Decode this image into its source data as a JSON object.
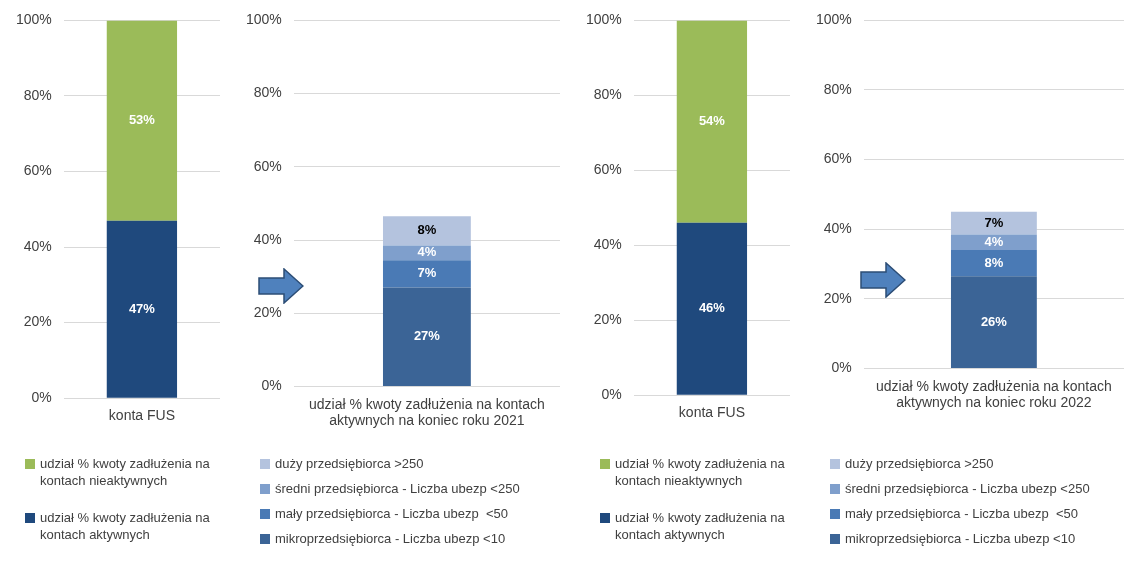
{
  "chart_data": [
    {
      "type": "bar",
      "stacked": true,
      "categories": [
        "konta FUS"
      ],
      "ylim": [
        0,
        100
      ],
      "yticks": [
        {
          "value": 0,
          "label": "0%"
        },
        {
          "value": 20,
          "label": "20%"
        },
        {
          "value": 40,
          "label": "40%"
        },
        {
          "value": 60,
          "label": "60%"
        },
        {
          "value": 80,
          "label": "80%"
        },
        {
          "value": 100,
          "label": "100%"
        }
      ],
      "grid": "y",
      "legend": "bottom",
      "series": [
        {
          "name": "udział % kwoty zadłużenia na kontach aktywnych",
          "color": "#1f497d",
          "values": [
            47
          ],
          "value_labels": [
            "47%"
          ]
        },
        {
          "name": "udział % kwoty zadłużenia na kontach nieaktywnych",
          "color": "#9bbb59",
          "values": [
            53
          ],
          "value_labels": [
            "53%"
          ]
        }
      ]
    },
    {
      "type": "bar",
      "stacked": true,
      "categories": [
        "udział % kwoty zadłużenia na kontach aktywnych na koniec roku 2021"
      ],
      "ylim": [
        0,
        100
      ],
      "yticks": [
        {
          "value": 0,
          "label": "0%"
        },
        {
          "value": 20,
          "label": "20%"
        },
        {
          "value": 40,
          "label": "40%"
        },
        {
          "value": 60,
          "label": "60%"
        },
        {
          "value": 80,
          "label": "80%"
        },
        {
          "value": 100,
          "label": "100%"
        }
      ],
      "grid": "y",
      "legend": "bottom",
      "series": [
        {
          "name": "mikroprzedsiębiorca - Liczba ubezp <10",
          "color": "#3b6496",
          "values": [
            27
          ],
          "value_labels": [
            "27%"
          ]
        },
        {
          "name": "mały przedsiębiorca - Liczba ubezp  <50",
          "color": "#4a7ab5",
          "values": [
            7.5
          ],
          "value_labels": [
            "7%"
          ]
        },
        {
          "name": "średni przedsiębiorca - Liczba ubezp <250",
          "color": "#7f9fcc",
          "values": [
            4
          ],
          "value_labels": [
            "4%"
          ]
        },
        {
          "name": "duży przedsiębiorca >250",
          "color": "#b4c3de",
          "values": [
            8
          ],
          "value_labels": [
            "8%"
          ]
        }
      ]
    },
    {
      "type": "bar",
      "stacked": true,
      "categories": [
        "konta FUS"
      ],
      "ylim": [
        0,
        100
      ],
      "yticks": [
        {
          "value": 0,
          "label": "0%"
        },
        {
          "value": 20,
          "label": "20%"
        },
        {
          "value": 40,
          "label": "40%"
        },
        {
          "value": 60,
          "label": "60%"
        },
        {
          "value": 80,
          "label": "80%"
        },
        {
          "value": 100,
          "label": "100%"
        }
      ],
      "grid": "y",
      "legend": "bottom",
      "series": [
        {
          "name": "udział % kwoty zadłużenia na kontach aktywnych",
          "color": "#1f497d",
          "values": [
            46
          ],
          "value_labels": [
            "46%"
          ]
        },
        {
          "name": "udział % kwoty zadłużenia na kontach nieaktywnych",
          "color": "#9bbb59",
          "values": [
            54
          ],
          "value_labels": [
            "54%"
          ]
        }
      ]
    },
    {
      "type": "bar",
      "stacked": true,
      "categories": [
        "udział % kwoty zadłużenia na kontach aktywnych na koniec roku 2022"
      ],
      "ylim": [
        0,
        100
      ],
      "yticks": [
        {
          "value": 0,
          "label": "0%"
        },
        {
          "value": 20,
          "label": "20%"
        },
        {
          "value": 40,
          "label": "40%"
        },
        {
          "value": 60,
          "label": "60%"
        },
        {
          "value": 80,
          "label": "80%"
        },
        {
          "value": 100,
          "label": "100%"
        }
      ],
      "grid": "y",
      "legend": "bottom",
      "series": [
        {
          "name": "mikroprzedsiębiorca - Liczba ubezp <10",
          "color": "#3b6496",
          "values": [
            26.5
          ],
          "value_labels": [
            "26%"
          ]
        },
        {
          "name": "mały przedsiębiorca - Liczba ubezp  <50",
          "color": "#4a7ab5",
          "values": [
            7.5
          ],
          "value_labels": [
            "8%"
          ]
        },
        {
          "name": "średni przedsiębiorca - Liczba ubezp <250",
          "color": "#7f9fcc",
          "values": [
            4.5
          ],
          "value_labels": [
            "4%"
          ]
        },
        {
          "name": "duży przedsiębiorca >250",
          "color": "#b4c3de",
          "values": [
            6.5
          ],
          "value_labels": [
            "7%"
          ]
        }
      ]
    }
  ]
}
